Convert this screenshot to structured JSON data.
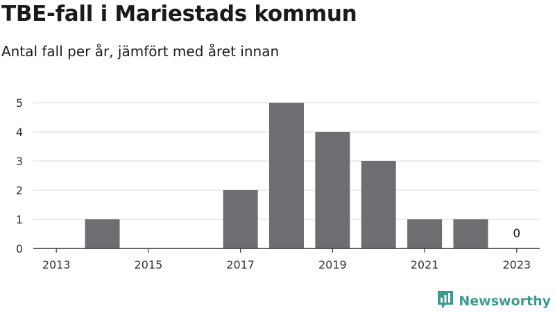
{
  "title": "TBE-fall i Mariestads kommun",
  "subtitle": "Antal fall per år, jämfört med året innan",
  "brand": "Newsworthy",
  "colors": {
    "bar": "#6e6d72",
    "grid": "#d9d9d9",
    "axis": "#333333",
    "brand": "#3d9a8f"
  },
  "chart_data": {
    "type": "bar",
    "x": [
      2013,
      2014,
      2015,
      2016,
      2017,
      2018,
      2019,
      2020,
      2021,
      2022,
      2023
    ],
    "values": [
      0,
      1,
      0,
      0,
      2,
      5,
      4,
      3,
      1,
      1,
      0
    ],
    "xticks": [
      "2013",
      "2015",
      "2017",
      "2019",
      "2021",
      "2023"
    ],
    "yticks": [
      0,
      1,
      2,
      3,
      4,
      5
    ],
    "ylim": [
      0,
      5
    ],
    "data_labels": [
      {
        "x": 2023,
        "text": "0"
      }
    ],
    "grid": true,
    "legend": false
  }
}
